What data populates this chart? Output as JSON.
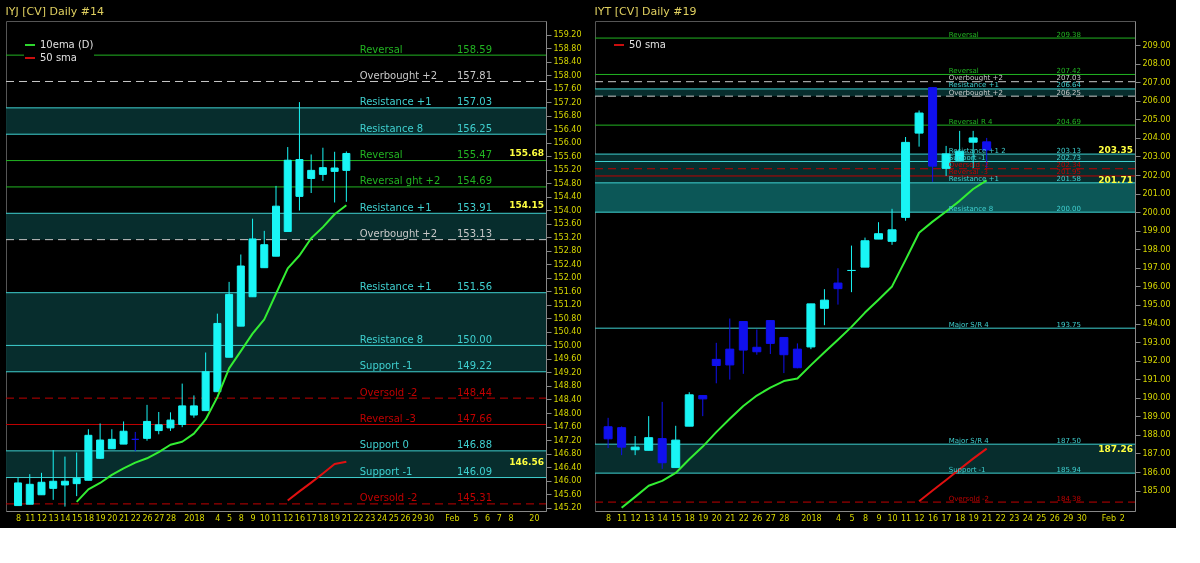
{
  "chart_data": [
    {
      "type": "candlestick",
      "title": "IYJ [CV]  Daily  #14",
      "categories": [
        "8",
        "11",
        "12",
        "13",
        "14",
        "15",
        "18",
        "19",
        "20",
        "21",
        "22",
        "26",
        "27",
        "28",
        null,
        "2018",
        null,
        "4",
        "5",
        "8",
        "9",
        "10",
        "11",
        "12",
        "16",
        "17",
        "18",
        "19",
        "21",
        "22",
        "23",
        "24",
        "25",
        "26",
        "29",
        "30",
        null,
        "Feb",
        null,
        "5",
        "6",
        "7",
        "8",
        null,
        "20"
      ],
      "ohlc": [
        [
          145.26,
          146.09,
          145.26,
          145.93
        ],
        [
          145.3,
          146.19,
          145.3,
          145.89
        ],
        [
          145.58,
          146.23,
          145.58,
          145.95
        ],
        [
          145.77,
          146.9,
          145.43,
          145.98
        ],
        [
          145.87,
          146.71,
          145.23,
          145.98
        ],
        [
          145.91,
          146.83,
          145.54,
          146.07
        ],
        [
          146.01,
          147.52,
          146.01,
          147.34
        ],
        [
          146.66,
          147.69,
          146.64,
          147.2
        ],
        [
          146.94,
          147.52,
          146.94,
          147.22
        ],
        [
          147.08,
          147.75,
          147.08,
          147.46
        ],
        [
          147.22,
          147.44,
          146.87,
          147.22
        ],
        [
          147.25,
          148.24,
          147.18,
          147.75
        ],
        [
          147.48,
          148.03,
          147.37,
          147.65
        ],
        [
          147.56,
          148.02,
          147.47,
          147.79
        ],
        [
          147.66,
          148.87,
          147.58,
          148.21
        ],
        [
          147.94,
          148.52,
          147.86,
          148.21
        ],
        [
          148.07,
          149.79,
          148.07,
          149.22
        ],
        [
          148.63,
          150.94,
          148.63,
          150.65
        ],
        [
          149.65,
          151.88,
          149.65,
          151.51
        ],
        [
          150.57,
          152.69,
          150.57,
          152.35
        ],
        [
          151.44,
          153.75,
          151.44,
          153.15
        ],
        [
          152.3,
          153.39,
          152.3,
          152.98
        ],
        [
          152.64,
          154.72,
          152.64,
          154.12
        ],
        [
          153.37,
          155.87,
          153.37,
          155.48
        ],
        [
          154.41,
          157.2,
          153.99,
          155.5
        ],
        [
          154.94,
          155.65,
          154.51,
          155.18
        ],
        [
          155.06,
          155.85,
          154.87,
          155.26
        ],
        [
          155.15,
          155.73,
          154.23,
          155.25
        ],
        [
          155.18,
          155.74,
          154.25,
          155.68
        ],
        null,
        null,
        null,
        null,
        null,
        null,
        null,
        null,
        null,
        null,
        null,
        null,
        null,
        null,
        null,
        null
      ],
      "colors": [
        "#19f5f5",
        "#19f5f5",
        "#19f5f5",
        "#19f5f5",
        "#19f5f5",
        "#19f5f5",
        "#19f5f5",
        "#19f5f5",
        "#19f5f5",
        "#19f5f5",
        "#1010ee",
        "#19f5f5",
        "#19f5f5",
        "#19f5f5",
        "#19f5f5",
        "#19f5f5",
        "#19f5f5",
        "#19f5f5",
        "#19f5f5",
        "#19f5f5",
        "#19f5f5",
        "#19f5f5",
        "#19f5f5",
        "#19f5f5",
        "#19f5f5",
        "#19f5f5",
        "#19f5f5",
        "#19f5f5",
        "#19f5f5",
        null,
        null,
        null,
        null,
        null,
        null,
        null,
        null,
        null,
        null,
        null,
        null,
        null,
        null,
        null,
        null
      ],
      "series": [
        {
          "name": "10ema (D)",
          "type": "line",
          "color": "#33ee33",
          "values": [
            null,
            null,
            null,
            null,
            null,
            145.37,
            145.74,
            145.93,
            146.17,
            146.36,
            146.53,
            146.66,
            146.84,
            147.06,
            147.15,
            147.39,
            147.81,
            148.47,
            149.32,
            149.83,
            150.35,
            150.77,
            151.53,
            152.28,
            152.66,
            153.17,
            153.5,
            153.88,
            154.15,
            null,
            null,
            null,
            null,
            null,
            null,
            null,
            null,
            null,
            null,
            null,
            null,
            null,
            null,
            null,
            null
          ]
        },
        {
          "name": "50 sma",
          "type": "line",
          "color": "#e01010",
          "values": [
            null,
            null,
            null,
            null,
            null,
            null,
            null,
            null,
            null,
            null,
            null,
            null,
            null,
            null,
            null,
            null,
            null,
            null,
            null,
            null,
            null,
            null,
            null,
            145.41,
            145.68,
            145.94,
            146.21,
            146.49,
            146.56,
            null,
            null,
            null,
            null,
            null,
            null,
            null,
            null,
            null,
            null,
            null,
            null,
            null,
            null,
            null,
            null
          ]
        }
      ],
      "ylim": [
        145.1,
        159.6
      ],
      "yticks": [
        {
          "value": 145.2,
          "label": "145.20"
        },
        {
          "value": 145.6,
          "label": "145.60"
        },
        {
          "value": 146,
          "label": "146.00"
        },
        {
          "value": 146.4,
          "label": "146.40"
        },
        {
          "value": 146.8,
          "label": "146.80"
        },
        {
          "value": 147.2,
          "label": "147.20"
        },
        {
          "value": 147.6,
          "label": "147.60"
        },
        {
          "value": 148,
          "label": "148.00"
        },
        {
          "value": 148.4,
          "label": "148.40"
        },
        {
          "value": 148.8,
          "label": "148.80"
        },
        {
          "value": 149.2,
          "label": "149.20"
        },
        {
          "value": 149.6,
          "label": "149.60"
        },
        {
          "value": 150,
          "label": "150.00"
        },
        {
          "value": 150.4,
          "label": "150.40"
        },
        {
          "value": 150.8,
          "label": "150.80"
        },
        {
          "value": 151.2,
          "label": "151.20"
        },
        {
          "value": 151.6,
          "label": "151.60"
        },
        {
          "value": 152,
          "label": "152.00"
        },
        {
          "value": 152.4,
          "label": "152.40"
        },
        {
          "value": 152.8,
          "label": "152.80"
        },
        {
          "value": 153.2,
          "label": "153.20"
        },
        {
          "value": 153.6,
          "label": "153.60"
        },
        {
          "value": 154,
          "label": "154.00"
        },
        {
          "value": 154.4,
          "label": "154.40"
        },
        {
          "value": 154.8,
          "label": "154.80"
        },
        {
          "value": 155.2,
          "label": "155.20"
        },
        {
          "value": 155.6,
          "label": "155.60"
        },
        {
          "value": 156,
          "label": "156.00"
        },
        {
          "value": 156.4,
          "label": "156.40"
        },
        {
          "value": 156.8,
          "label": "156.80"
        },
        {
          "value": 157.2,
          "label": "157.20"
        },
        {
          "value": 157.6,
          "label": "157.60"
        },
        {
          "value": 158,
          "label": "158.00"
        },
        {
          "value": 158.4,
          "label": "158.40"
        },
        {
          "value": 158.8,
          "label": "158.80"
        },
        {
          "value": 159.2,
          "label": "159.20"
        }
      ],
      "bands": [
        {
          "axis": "y",
          "from": 156.25,
          "to": 157.03,
          "color": "#083232"
        },
        {
          "axis": "y",
          "from": 153.13,
          "to": 153.91,
          "color": "#083232"
        },
        {
          "axis": "y",
          "from": 149.22,
          "to": 151.56,
          "color": "#083232"
        },
        {
          "axis": "y",
          "from": 146.09,
          "to": 146.88,
          "color": "#083232"
        }
      ],
      "ref_lines": [
        {
          "axis": "y",
          "value": 158.59,
          "label": "Reversal",
          "color": "#22b422",
          "line_style": "solid"
        },
        {
          "axis": "y",
          "value": 157.81,
          "label": "Overbought +2",
          "color": "#c8c8c8",
          "line_style": "dashed"
        },
        {
          "axis": "y",
          "value": 157.03,
          "label": "Resistance +1",
          "color": "#3fd0d0",
          "line_style": "solid"
        },
        {
          "axis": "y",
          "value": 156.25,
          "label": "Resistance 8",
          "color": "#3fd0d0",
          "line_style": "solid"
        },
        {
          "axis": "y",
          "value": 155.47,
          "label": "Reversal",
          "color": "#22b422",
          "line_style": "solid"
        },
        {
          "axis": "y",
          "value": 154.69,
          "label": "Reversal ght +2",
          "color": "#22b422",
          "line_style": "solid"
        },
        {
          "axis": "y",
          "value": 153.91,
          "label": "Resistance +1",
          "color": "#3fd0d0",
          "line_style": "solid"
        },
        {
          "axis": "y",
          "value": 153.13,
          "label": "Overbought +2",
          "color": "#c8c8c8",
          "line_style": "dashed"
        },
        {
          "axis": "y",
          "value": 151.56,
          "label": "Resistance +1",
          "color": "#3fd0d0",
          "line_style": "solid"
        },
        {
          "axis": "y",
          "value": 150.0,
          "label": "Resistance 8",
          "color": "#3fd0d0",
          "line_style": "solid"
        },
        {
          "axis": "y",
          "value": 149.22,
          "label": "Support -1",
          "color": "#3fd0d0",
          "line_style": "solid"
        },
        {
          "axis": "y",
          "value": 148.44,
          "label": "Oversold -2",
          "color": "#c00000",
          "line_style": "dashed"
        },
        {
          "axis": "y",
          "value": 147.66,
          "label": "Reversal -3",
          "color": "#c00000",
          "line_style": "solid"
        },
        {
          "axis": "y",
          "value": 146.88,
          "label": "Support 0",
          "color": "#3fd0d0",
          "line_style": "solid"
        },
        {
          "axis": "y",
          "value": 146.09,
          "label": "Support -1",
          "color": "#3fd0d0",
          "line_style": "solid"
        },
        {
          "axis": "y",
          "value": 145.31,
          "label": "Oversold -2",
          "color": "#c00000",
          "line_style": "dashed"
        }
      ],
      "annotations": [
        "155.68",
        "154.15",
        "146.56",
        {
          "text": "158.59",
          "y": 158.59
        },
        {
          "text": "157.81",
          "y": 157.81
        },
        {
          "text": "157.03",
          "y": 157.03
        },
        {
          "text": "156.25",
          "y": 156.25
        },
        {
          "text": "155.47",
          "y": 155.47
        },
        {
          "text": "154.69",
          "y": 154.69
        },
        {
          "text": "153.91",
          "y": 153.91
        },
        {
          "text": "153.13",
          "y": 153.13
        },
        {
          "text": "151.56",
          "y": 151.56
        },
        {
          "text": "150.00",
          "y": 150.0
        },
        {
          "text": "149.22",
          "y": 149.22
        },
        {
          "text": "148.44",
          "y": 148.44
        },
        {
          "text": "147.66",
          "y": 147.66
        },
        {
          "text": "146.88",
          "y": 146.88
        },
        {
          "text": "146.09",
          "y": 146.09
        },
        {
          "text": "145.31",
          "y": 145.31
        }
      ],
      "legend": "top left",
      "grid": false
    },
    {
      "type": "candlestick",
      "title": "IYT [CV]  Daily  #19",
      "categories": [
        "8",
        "11",
        "12",
        "13",
        "14",
        "15",
        "18",
        "19",
        "20",
        "21",
        "22",
        "26",
        "27",
        "28",
        null,
        "2018",
        null,
        "4",
        "5",
        "8",
        "9",
        "10",
        "11",
        "12",
        "16",
        "17",
        "18",
        "19",
        "21",
        "22",
        "23",
        "24",
        "25",
        "26",
        "29",
        "30",
        null,
        "Feb",
        "2"
      ],
      "ohlc": [
        [
          188.44,
          188.92,
          187.29,
          187.79
        ],
        [
          188.39,
          188.46,
          186.91,
          187.34
        ],
        [
          187.2,
          187.94,
          186.91,
          187.34
        ],
        [
          187.17,
          189.01,
          187.17,
          187.85
        ],
        [
          187.8,
          189.78,
          186.17,
          186.5
        ],
        [
          186.24,
          188.49,
          186.24,
          187.72
        ],
        [
          188.47,
          190.3,
          188.47,
          190.16
        ],
        [
          190.12,
          190.12,
          189.01,
          189.94
        ],
        [
          192.07,
          192.96,
          190.78,
          191.74
        ],
        [
          192.62,
          194.27,
          190.98,
          191.77
        ],
        [
          194.11,
          194.11,
          191.29,
          192.57
        ],
        [
          192.72,
          193.68,
          192.32,
          192.48
        ],
        [
          194.16,
          194.16,
          192.36,
          192.93
        ],
        [
          193.25,
          193.25,
          191.33,
          192.32
        ],
        [
          192.62,
          192.93,
          191.59,
          191.62
        ],
        [
          192.74,
          195.06,
          192.62,
          195.06
        ],
        [
          194.82,
          195.85,
          193.91,
          195.26
        ],
        [
          196.18,
          196.98,
          195.02,
          195.88
        ],
        [
          196.86,
          198.2,
          195.69,
          196.86
        ],
        [
          197.04,
          198.63,
          197.04,
          198.46
        ],
        [
          198.55,
          199.46,
          198.55,
          198.84
        ],
        [
          198.43,
          200.18,
          198.24,
          199.05
        ],
        [
          199.72,
          204.05,
          199.54,
          203.76
        ],
        [
          204.26,
          205.48,
          203.53,
          205.34
        ],
        [
          206.71,
          206.71,
          201.64,
          202.48
        ],
        [
          202.36,
          203.57,
          201.95,
          203.14
        ],
        [
          202.79,
          204.38,
          202.79,
          203.28
        ],
        [
          203.77,
          204.38,
          202.38,
          204.0
        ],
        [
          203.79,
          204.0,
          202.38,
          203.35
        ],
        null,
        null,
        null,
        null,
        null,
        null,
        null,
        null,
        null,
        null
      ],
      "colors": [
        "#1010ee",
        "#1010ee",
        "#19f5f5",
        "#19f5f5",
        "#1010ee",
        "#19f5f5",
        "#19f5f5",
        "#1010ee",
        "#1010ee",
        "#1010ee",
        "#1010ee",
        "#1010ee",
        "#1010ee",
        "#1010ee",
        "#1010ee",
        "#19f5f5",
        "#19f5f5",
        "#1010ee",
        "#19f5f5",
        "#19f5f5",
        "#19f5f5",
        "#19f5f5",
        "#19f5f5",
        "#19f5f5",
        "#1010ee",
        "#19f5f5",
        "#19f5f5",
        "#19f5f5",
        "#1010ee",
        null,
        null,
        null,
        null,
        null,
        null,
        null,
        null,
        null,
        null
      ],
      "series": [
        {
          "type": "line",
          "color": "#33ee33",
          "values": [
            null,
            184.07,
            184.66,
            185.26,
            185.52,
            185.95,
            186.69,
            187.37,
            188.15,
            188.87,
            189.56,
            190.12,
            190.55,
            190.9,
            191.04,
            191.76,
            192.45,
            193.13,
            193.82,
            194.59,
            195.28,
            196.0,
            197.43,
            198.89,
            199.49,
            200.04,
            200.61,
            201.25,
            201.71,
            null,
            null,
            null,
            null,
            null,
            null,
            null,
            null,
            null,
            null
          ]
        },
        {
          "name": "50 sma",
          "type": "line",
          "color": "#e01010",
          "values": [
            null,
            null,
            null,
            null,
            null,
            null,
            null,
            null,
            null,
            null,
            null,
            null,
            null,
            null,
            null,
            null,
            null,
            null,
            null,
            null,
            null,
            null,
            null,
            184.43,
            185.0,
            185.57,
            186.15,
            186.72,
            187.26,
            null,
            null,
            null,
            null,
            null,
            null,
            null,
            null,
            null,
            null
          ]
        }
      ],
      "ylim": [
        183.9,
        210.3
      ],
      "yticks": [
        {
          "value": 185,
          "label": "185.00"
        },
        {
          "value": 186,
          "label": "186.00"
        },
        {
          "value": 187,
          "label": "187.00"
        },
        {
          "value": 188,
          "label": "188.00"
        },
        {
          "value": 189,
          "label": "189.00"
        },
        {
          "value": 190,
          "label": "190.00"
        },
        {
          "value": 191,
          "label": "191.00"
        },
        {
          "value": 192,
          "label": "192.00"
        },
        {
          "value": 193,
          "label": "193.00"
        },
        {
          "value": 194,
          "label": "194.00"
        },
        {
          "value": 195,
          "label": "195.00"
        },
        {
          "value": 196,
          "label": "196.00"
        },
        {
          "value": 197,
          "label": "197.00"
        },
        {
          "value": 198,
          "label": "198.00"
        },
        {
          "value": 199,
          "label": "199.00"
        },
        {
          "value": 200,
          "label": "200.00"
        },
        {
          "value": 201,
          "label": "201.00"
        },
        {
          "value": 202,
          "label": "202.00"
        },
        {
          "value": 203,
          "label": "203.00"
        },
        {
          "value": 204,
          "label": "204.00"
        },
        {
          "value": 205,
          "label": "205.00"
        },
        {
          "value": 206,
          "label": "206.00"
        },
        {
          "value": 207,
          "label": "207.00"
        },
        {
          "value": 208,
          "label": "208.00"
        },
        {
          "value": 209,
          "label": "209.00"
        }
      ],
      "bands": [
        {
          "axis": "y",
          "from": 206.25,
          "to": 206.64,
          "color": "#083232"
        },
        {
          "axis": "y",
          "from": 200.0,
          "to": 203.13,
          "color": "#083232"
        },
        {
          "axis": "y",
          "from": 200.0,
          "to": 201.58,
          "color": "#0d5c5c"
        },
        {
          "axis": "y",
          "from": 185.94,
          "to": 187.5,
          "color": "#083232"
        }
      ],
      "ref_lines": [
        {
          "axis": "y",
          "value": 209.38,
          "label": "Reversal",
          "color": "#22b422",
          "line_style": "solid"
        },
        {
          "axis": "y",
          "value": 207.42,
          "label": "Reversal",
          "color": "#22b422",
          "line_style": "solid"
        },
        {
          "axis": "y",
          "value": 207.03,
          "label": "Overbought +2",
          "color": "#c8c8c8",
          "line_style": "dashed"
        },
        {
          "axis": "y",
          "value": 206.64,
          "label": "Resistance +1",
          "color": "#3fd0d0",
          "line_style": "solid"
        },
        {
          "axis": "y",
          "value": 206.25,
          "label": "Overbought +2",
          "color": "#c8c8c8",
          "line_style": "dashed"
        },
        {
          "axis": "y",
          "value": 204.69,
          "label": "Reversal R 4",
          "color": "#22b422",
          "line_style": "solid"
        },
        {
          "axis": "y",
          "value": 203.13,
          "label": "Resistance +1 2",
          "color": "#3fd0d0",
          "line_style": "solid"
        },
        {
          "axis": "y",
          "value": 202.73,
          "label": "Support -1",
          "color": "#3fd0d0",
          "line_style": "solid"
        },
        {
          "axis": "y",
          "value": 202.34,
          "label": "Oversold -2",
          "color": "#c00000",
          "line_style": "dashed"
        },
        {
          "axis": "y",
          "value": 201.95,
          "label": "Reversal -3",
          "color": "#c00000",
          "line_style": "solid"
        },
        {
          "axis": "y",
          "value": 201.58,
          "label": "Resistance +1",
          "color": "#3fd0d0",
          "line_style": "solid"
        },
        {
          "axis": "y",
          "value": 200.0,
          "label": "Resistance 8",
          "color": "#3fd0d0",
          "line_style": "solid"
        },
        {
          "axis": "y",
          "value": 193.75,
          "label": "Major S/R 4",
          "color": "#3fd0d0",
          "line_style": "solid"
        },
        {
          "axis": "y",
          "value": 187.5,
          "label": "Major S/R 4",
          "color": "#3fd0d0",
          "line_style": "solid"
        },
        {
          "axis": "y",
          "value": 185.94,
          "label": "Support -1",
          "color": "#3fd0d0",
          "line_style": "solid"
        },
        {
          "axis": "y",
          "value": 184.38,
          "label": "Oversold -2",
          "color": "#c00000",
          "line_style": "dashed"
        }
      ],
      "annotations": [
        "203.35",
        "201.71",
        "187.26",
        {
          "text": "209.38",
          "y": 209.38
        },
        {
          "text": "207.42",
          "y": 207.42
        },
        {
          "text": "207.03",
          "y": 207.03
        },
        {
          "text": "206.64",
          "y": 206.64
        },
        {
          "text": "206.25",
          "y": 206.25
        },
        {
          "text": "204.69",
          "y": 204.69
        },
        {
          "text": "203.13",
          "y": 203.13
        },
        {
          "text": "202.73",
          "y": 202.73
        },
        {
          "text": "202.34",
          "y": 202.34
        },
        {
          "text": "201.95",
          "y": 201.95
        },
        {
          "text": "201.58",
          "y": 201.58
        },
        {
          "text": "200.00",
          "y": 200.0
        },
        {
          "text": "193.75",
          "y": 193.75
        },
        {
          "text": "187.50",
          "y": 187.5
        },
        {
          "text": "185.94",
          "y": 185.94
        },
        {
          "text": "184.38",
          "y": 184.38
        }
      ],
      "legend": "top left",
      "grid": false
    }
  ]
}
